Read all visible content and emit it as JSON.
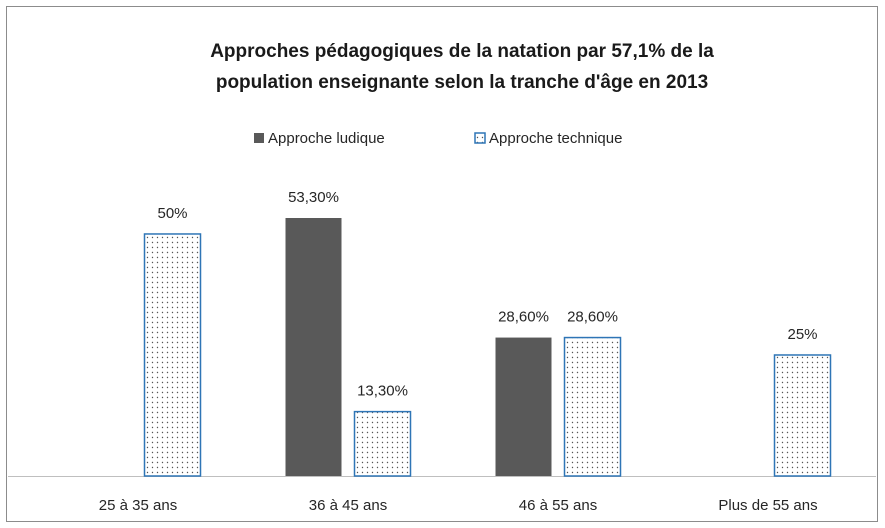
{
  "chart_data": {
    "type": "bar",
    "title": [
      "Approches pédagogiques de la natation par 57,1% de la",
      "population enseignante selon la tranche d'âge en 2013"
    ],
    "categories": [
      "25 à 35 ans",
      "36 à 45 ans",
      "46 à 55 ans",
      "Plus de 55 ans"
    ],
    "series": [
      {
        "name": "Approche ludique",
        "color": "#595959",
        "values": [
          null,
          53.3,
          28.6,
          null
        ],
        "value_labels": [
          null,
          "53,30%",
          "28,60%",
          null
        ]
      },
      {
        "name": "Approche technique",
        "color": "#2e75b6",
        "values": [
          50,
          13.3,
          28.6,
          25
        ],
        "value_labels": [
          "50%",
          "13,30%",
          "28,60%",
          "25%"
        ]
      }
    ],
    "legend": "top"
  }
}
